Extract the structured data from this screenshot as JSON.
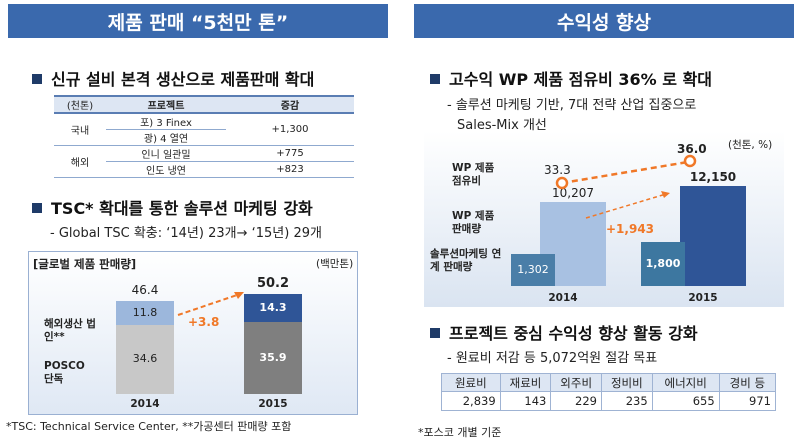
{
  "left": {
    "banner": "제품 판매 “5천만 톤”",
    "section1": {
      "title": "신규 설비 본격 생산으로 제품판매 확대",
      "table": {
        "headers": [
          "(천톤)",
          "프로젝트",
          "증감"
        ],
        "groups": [
          {
            "region": "국내",
            "projects": [
              "포) 3 Finex",
              "광) 4 열연"
            ],
            "change": "+1,300"
          },
          {
            "region": "해외",
            "projects": [
              "인니 일관밀",
              "인도 냉연"
            ],
            "changes": [
              "+775",
              "+823"
            ]
          }
        ]
      }
    },
    "section2": {
      "title": "TSC* 확대를 통한 솔루션 마케팅 강화",
      "sub": "- Global TSC 확충: ‘14년) 23개→ ‘15년) 29개"
    },
    "chart_title": "[글로벌 제품 판매량]",
    "chart_unit": "(백만톤)",
    "footnote": "*TSC: Technical Service Center, **가공센터 판매량 포함"
  },
  "right": {
    "banner": "수익성 향상",
    "section1": {
      "title": "고수익 WP 제품 점유비 36% 로 확대",
      "sub1": "- 솔루션 마케팅 기반, 7대 전략 산업 집중으로",
      "sub2": "Sales-Mix 개선"
    },
    "chart_unit": "(천톤, %)",
    "section2": {
      "title": "프로젝트 중심 수익성 향상 활동 강화",
      "sub": "- 원료비 저감 등 5,072억원 절감 목표",
      "table": {
        "headers": [
          "원료비",
          "재료비",
          "외주비",
          "정비비",
          "에너지비",
          "경비 등"
        ],
        "values": [
          "2,839",
          "143",
          "229",
          "235",
          "655",
          "971"
        ]
      }
    },
    "footnote": "*포스코 개별 기준"
  },
  "chart_data": [
    {
      "type": "bar",
      "title": "[글로벌 제품 판매량]",
      "unit": "(백만톤)",
      "categories": [
        "2014",
        "2015"
      ],
      "series": [
        {
          "name": "POSCO 단독",
          "values": [
            34.6,
            35.9
          ],
          "color": "#c8c8c8"
        },
        {
          "name": "해외생산 법인**",
          "values": [
            11.8,
            14.3
          ],
          "color": "#9cb7dc"
        }
      ],
      "totals": [
        46.4,
        50.2
      ],
      "annotation": "+3.8"
    },
    {
      "type": "bar",
      "unit": "(천톤, %)",
      "categories": [
        "2014",
        "2015"
      ],
      "series": [
        {
          "name": "솔루션마케팅 연계 판매량",
          "values": [
            1302,
            1800
          ]
        },
        {
          "name": "WP 제품 판매량",
          "values": [
            10207,
            12150
          ]
        }
      ],
      "line": {
        "name": "WP 제품 점유비",
        "values": [
          33.3,
          36.0
        ]
      },
      "annotation": "+1,943"
    }
  ]
}
